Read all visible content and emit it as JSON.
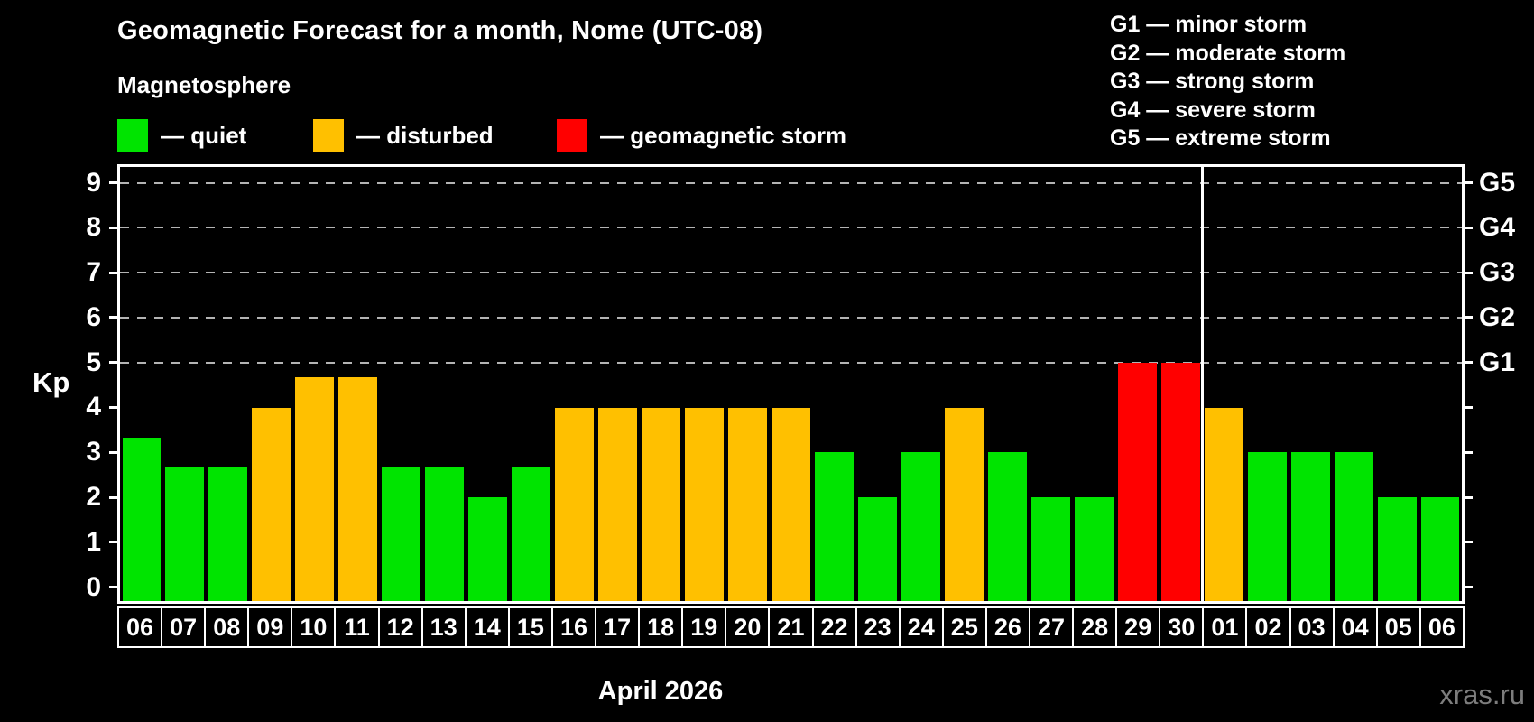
{
  "title": "Geomagnetic Forecast for a month, Nome (UTC-08)",
  "subtitle": "Magnetosphere",
  "colors": {
    "quiet": "#00e400",
    "disturbed": "#ffc000",
    "storm": "#ff0000",
    "grid": "#b4b4b4",
    "axis": "#ffffff",
    "watermark": "#7d7d7d",
    "background": "#000000"
  },
  "legend": {
    "items": [
      {
        "label": "— quiet",
        "color_key": "quiet"
      },
      {
        "label": "— disturbed",
        "color_key": "disturbed"
      },
      {
        "label": "— geomagnetic storm",
        "color_key": "storm"
      }
    ]
  },
  "g_scale_legend": [
    "G1 — minor storm",
    "G2 — moderate storm",
    "G3 — strong storm",
    "G4 — severe storm",
    "G5 — extreme storm"
  ],
  "chart_data": {
    "type": "bar",
    "title": "Geomagnetic Forecast for a month, Nome (UTC-08)",
    "ylabel": "Kp",
    "xlabel": "April 2026",
    "ylim": [
      0,
      9
    ],
    "yticks": [
      0,
      1,
      2,
      3,
      4,
      5,
      6,
      7,
      8,
      9
    ],
    "grid": "horizontal dashed lines at Kp 5,6,7,8,9 only",
    "legend_position": "top-left",
    "g_levels": [
      {
        "kp": 5,
        "label": "G1"
      },
      {
        "kp": 6,
        "label": "G2"
      },
      {
        "kp": 7,
        "label": "G3"
      },
      {
        "kp": 8,
        "label": "G4"
      },
      {
        "kp": 9,
        "label": "G5"
      }
    ],
    "categories": [
      "06",
      "07",
      "08",
      "09",
      "10",
      "11",
      "12",
      "13",
      "14",
      "15",
      "16",
      "17",
      "18",
      "19",
      "20",
      "21",
      "22",
      "23",
      "24",
      "25",
      "26",
      "27",
      "28",
      "29",
      "30",
      "01",
      "02",
      "03",
      "04",
      "05",
      "06"
    ],
    "values": [
      3.33,
      2.67,
      2.67,
      4,
      4.67,
      4.67,
      2.67,
      2.67,
      2,
      2.67,
      4,
      4,
      4,
      4,
      4,
      4,
      3,
      2,
      3,
      4,
      3,
      2,
      2,
      5,
      5,
      4,
      3,
      3,
      3,
      2,
      2
    ],
    "statuses": [
      "quiet",
      "quiet",
      "quiet",
      "disturbed",
      "disturbed",
      "disturbed",
      "quiet",
      "quiet",
      "quiet",
      "quiet",
      "disturbed",
      "disturbed",
      "disturbed",
      "disturbed",
      "disturbed",
      "disturbed",
      "quiet",
      "quiet",
      "quiet",
      "disturbed",
      "quiet",
      "quiet",
      "quiet",
      "storm",
      "storm",
      "disturbed",
      "quiet",
      "quiet",
      "quiet",
      "quiet",
      "quiet"
    ],
    "month_separator_after_index": 24
  },
  "footer": {
    "month_label": "April 2026",
    "watermark": "xras.ru"
  }
}
